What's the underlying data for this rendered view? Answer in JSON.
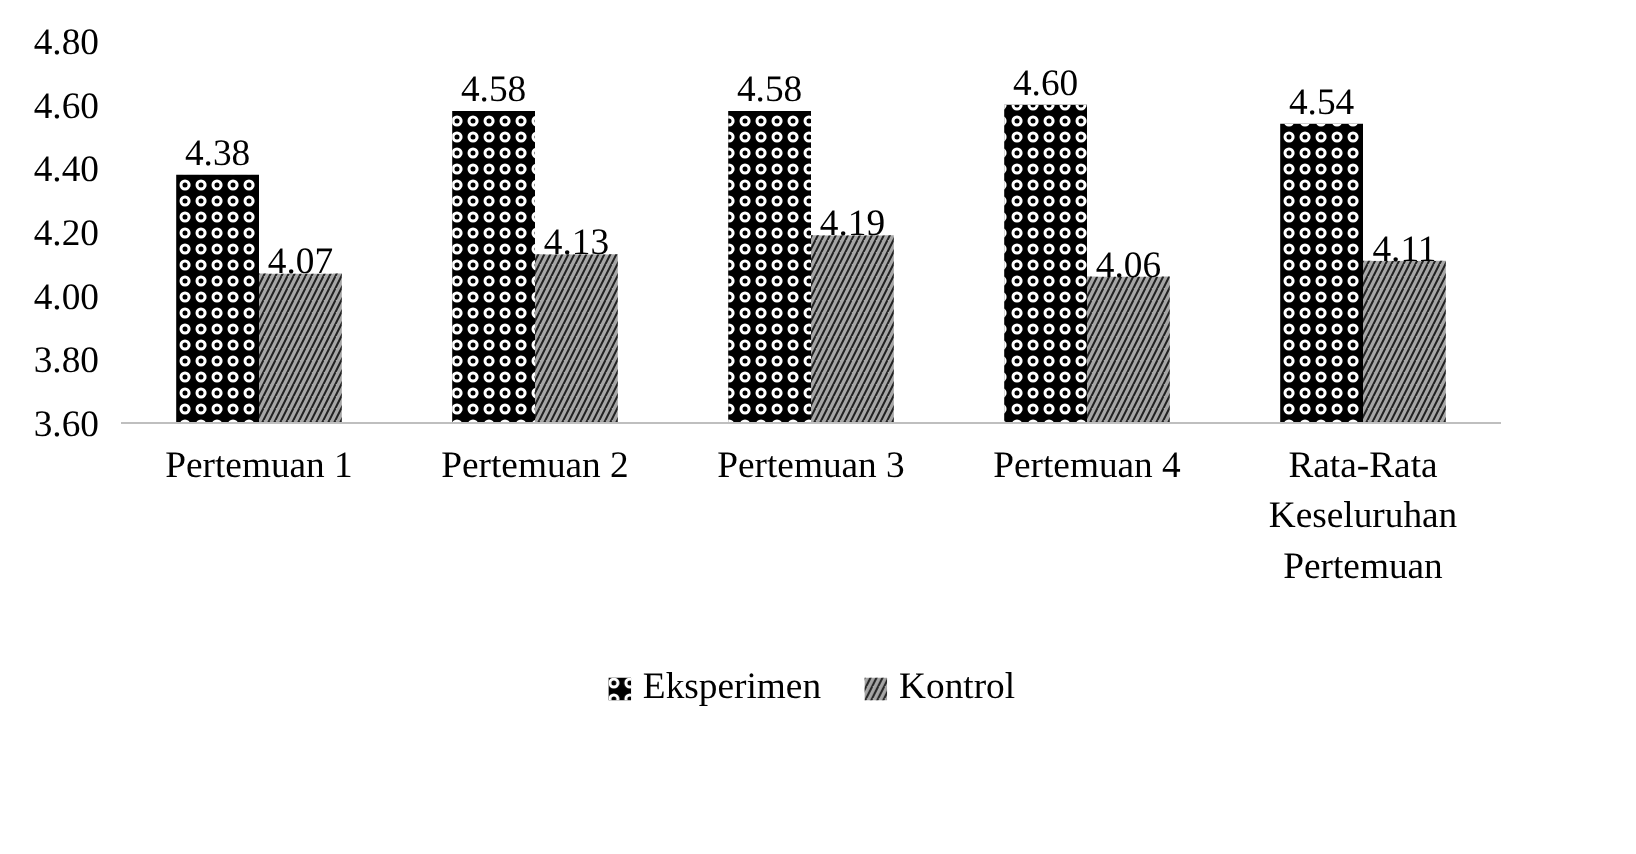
{
  "chart_data": {
    "type": "bar",
    "categories": [
      "Pertemuan 1",
      "Pertemuan 2",
      "Pertemuan 3",
      "Pertemuan 4",
      "Rata-Rata Keseluruhan Pertemuan"
    ],
    "series": [
      {
        "name": "Eksperimen",
        "color": "#000000",
        "values": [
          4.38,
          4.58,
          4.58,
          4.6,
          4.54
        ],
        "value_labels": [
          "4.38",
          "4.58",
          "4.58",
          "4.60",
          "4.54"
        ]
      },
      {
        "name": "Kontrol",
        "color": "#a6a6a6",
        "values": [
          4.07,
          4.13,
          4.19,
          4.06,
          4.11
        ],
        "value_labels": [
          "4.07",
          "4.13",
          "4.19",
          "4.06",
          "4.11"
        ]
      }
    ],
    "ylim": [
      3.6,
      4.8
    ],
    "yticks": [
      {
        "value": 3.6,
        "label": "3.60"
      },
      {
        "value": 3.8,
        "label": "3.80"
      },
      {
        "value": 4.0,
        "label": "4.00"
      },
      {
        "value": 4.2,
        "label": "4.20"
      },
      {
        "value": 4.4,
        "label": "4.40"
      },
      {
        "value": 4.6,
        "label": "4.60"
      },
      {
        "value": 4.8,
        "label": "4.80"
      }
    ],
    "grid": false,
    "legend": "bottom"
  }
}
